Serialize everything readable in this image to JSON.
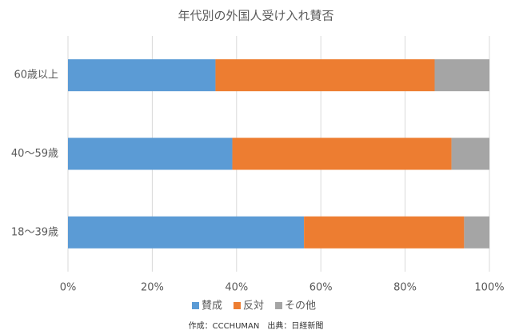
{
  "chart_data": {
    "type": "stacked-bar-horizontal",
    "title": "年代別の外国人受け入れ賛否",
    "categories": [
      "60歳以上",
      "40〜59歳",
      "18〜39歳"
    ],
    "series": [
      {
        "name": "賛成",
        "color": "#5b9bd5",
        "values": [
          35,
          39,
          56
        ]
      },
      {
        "name": "反対",
        "color": "#ed7d31",
        "values": [
          52,
          52,
          38
        ]
      },
      {
        "name": "その他",
        "color": "#a5a5a5",
        "values": [
          13,
          9,
          6
        ]
      }
    ],
    "xlim": [
      0,
      100
    ],
    "xticks": [
      {
        "value": 0,
        "label": "0%"
      },
      {
        "value": 20,
        "label": "20%"
      },
      {
        "value": 40,
        "label": "40%"
      },
      {
        "value": 60,
        "label": "60%"
      },
      {
        "value": 80,
        "label": "80%"
      },
      {
        "value": 100,
        "label": "100%"
      }
    ],
    "grid": true,
    "legend": "bottom",
    "note": "作成：CCCHUMAN　出典：日経新聞"
  }
}
